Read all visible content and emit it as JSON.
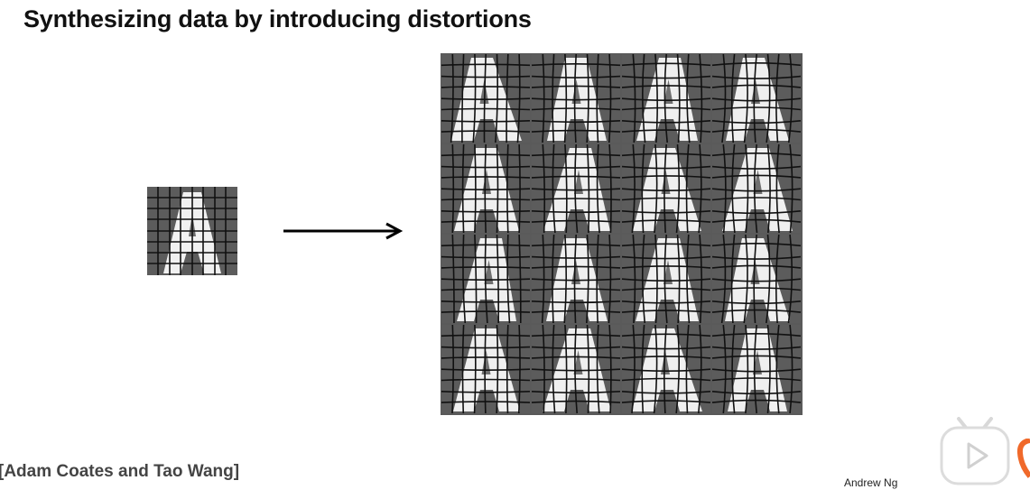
{
  "slide": {
    "title": "Synthesizing data by introducing distortions",
    "credit": "[Adam Coates and Tao Wang]",
    "author": "Andrew Ng"
  },
  "images": {
    "original": "letter-A-grid-image",
    "distorted_count": 16
  },
  "overlay": {
    "player_icon": "play-icon",
    "brand_icon": "brand-icon",
    "brand_color": "#f0692a"
  }
}
